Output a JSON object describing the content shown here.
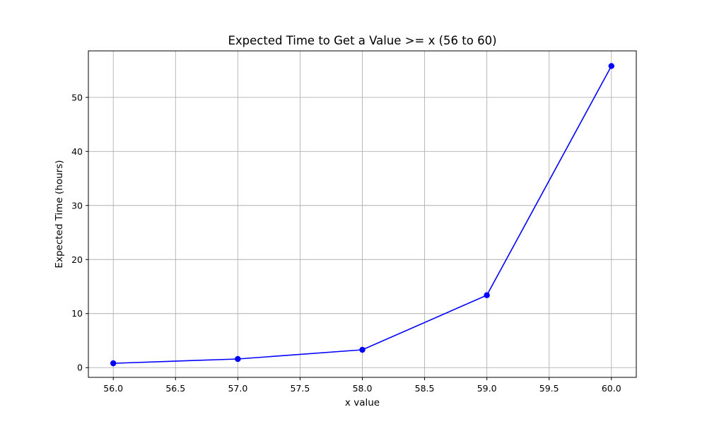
{
  "chart_data": {
    "type": "line",
    "title": "Expected Time to Get a Value >= x (56 to 60)",
    "xlabel": "x value",
    "ylabel": "Expected Time (hours)",
    "xlim": [
      55.8,
      60.2
    ],
    "ylim": [
      -1.8,
      58.6
    ],
    "xticks": [
      56.0,
      56.5,
      57.0,
      57.5,
      58.0,
      58.5,
      59.0,
      59.5,
      60.0
    ],
    "xtick_labels": [
      "56.0",
      "56.5",
      "57.0",
      "57.5",
      "58.0",
      "58.5",
      "59.0",
      "59.5",
      "60.0"
    ],
    "yticks": [
      0,
      10,
      20,
      30,
      40,
      50
    ],
    "ytick_labels": [
      "0",
      "10",
      "20",
      "30",
      "40",
      "50"
    ],
    "grid": true,
    "series": [
      {
        "x": [
          56,
          57,
          58,
          59,
          60
        ],
        "values": [
          0.8,
          1.6,
          3.3,
          13.4,
          55.8
        ],
        "color": "#0000ff",
        "marker": "circle"
      }
    ]
  }
}
